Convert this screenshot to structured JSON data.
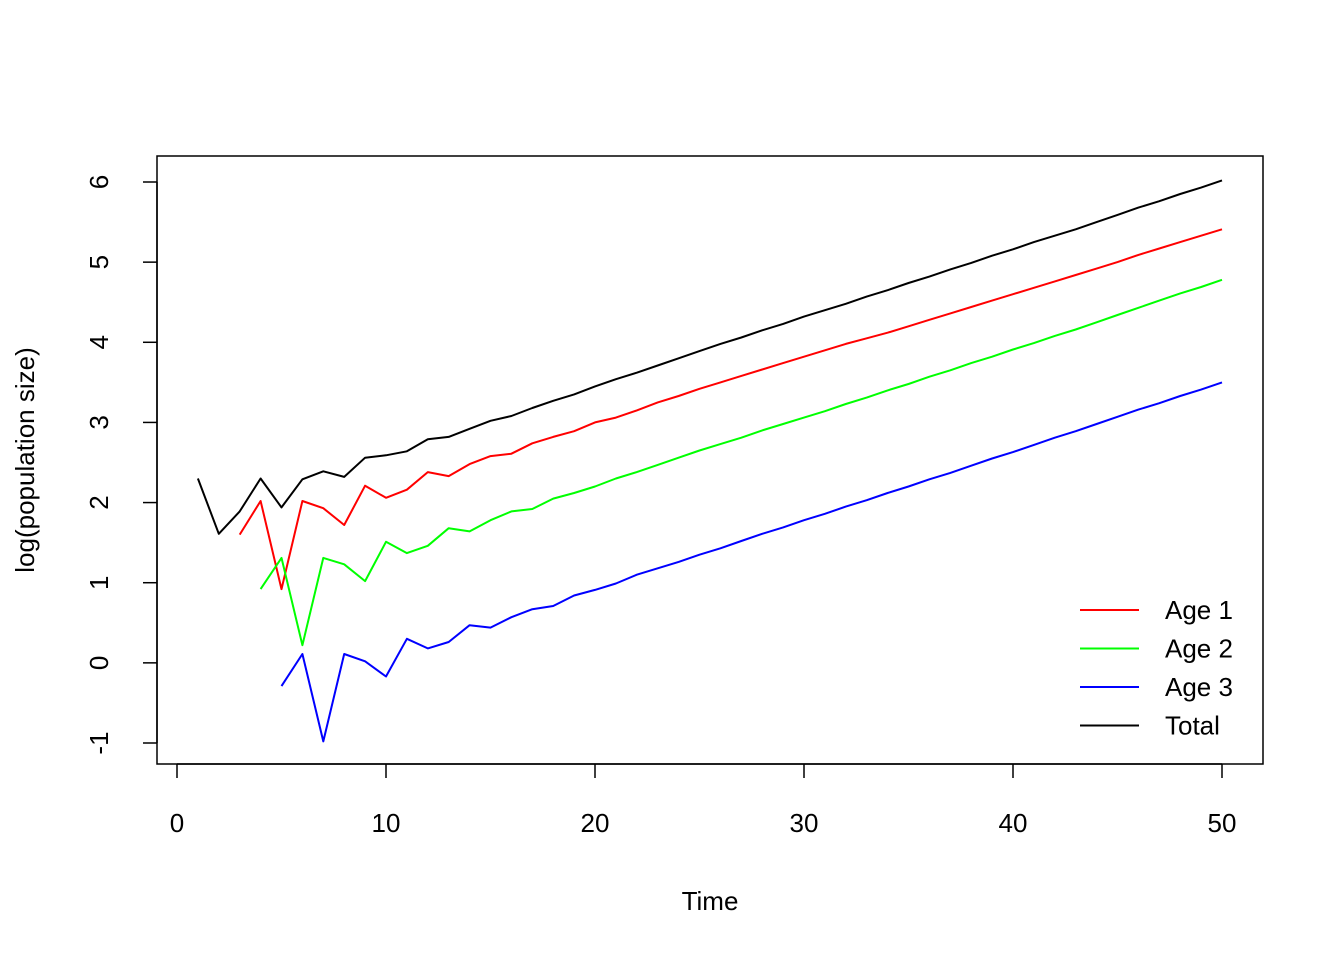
{
  "chart_data": {
    "type": "line",
    "title": "",
    "xlabel": "Time",
    "ylabel": "log(population size)",
    "xlim": [
      0,
      50
    ],
    "ylim": [
      -1,
      6
    ],
    "x_ticks": [
      0,
      10,
      20,
      30,
      40,
      50
    ],
    "y_ticks": [
      -1,
      0,
      1,
      2,
      3,
      4,
      5,
      6
    ],
    "grid": false,
    "legend_position": "bottom-right",
    "series": [
      {
        "name": "Age 1",
        "color": "#FF0000",
        "x": [
          3,
          4,
          5,
          6,
          7,
          8,
          9,
          10,
          11,
          12,
          13,
          14,
          15,
          16,
          17,
          18,
          19,
          20,
          21,
          22,
          23,
          24,
          25,
          26,
          27,
          28,
          29,
          30,
          31,
          32,
          33,
          34,
          35,
          36,
          37,
          38,
          39,
          40,
          41,
          42,
          43,
          44,
          45,
          46,
          47,
          48,
          49,
          50
        ],
        "values": [
          1.6,
          2.02,
          0.92,
          2.02,
          1.93,
          1.72,
          2.21,
          2.06,
          2.16,
          2.38,
          2.33,
          2.48,
          2.58,
          2.61,
          2.74,
          2.82,
          2.89,
          3.0,
          3.06,
          3.15,
          3.25,
          3.33,
          3.42,
          3.5,
          3.58,
          3.66,
          3.74,
          3.82,
          3.9,
          3.98,
          4.05,
          4.12,
          4.2,
          4.28,
          4.36,
          4.44,
          4.52,
          4.6,
          4.68,
          4.76,
          4.84,
          4.92,
          5.0,
          5.09,
          5.17,
          5.25,
          5.33,
          5.41
        ]
      },
      {
        "name": "Age 2",
        "color": "#00FF00",
        "x": [
          4,
          5,
          6,
          7,
          8,
          9,
          10,
          11,
          12,
          13,
          14,
          15,
          16,
          17,
          18,
          19,
          20,
          21,
          22,
          23,
          24,
          25,
          26,
          27,
          28,
          29,
          30,
          31,
          32,
          33,
          34,
          35,
          36,
          37,
          38,
          39,
          40,
          41,
          42,
          43,
          44,
          45,
          46,
          47,
          48,
          49,
          50
        ],
        "values": [
          0.92,
          1.31,
          0.22,
          1.31,
          1.23,
          1.02,
          1.51,
          1.37,
          1.46,
          1.68,
          1.64,
          1.78,
          1.89,
          1.92,
          2.05,
          2.12,
          2.2,
          2.3,
          2.38,
          2.47,
          2.56,
          2.65,
          2.73,
          2.81,
          2.9,
          2.98,
          3.06,
          3.14,
          3.23,
          3.31,
          3.4,
          3.48,
          3.57,
          3.65,
          3.74,
          3.82,
          3.91,
          3.99,
          4.08,
          4.16,
          4.25,
          4.34,
          4.43,
          4.52,
          4.61,
          4.69,
          4.78
        ]
      },
      {
        "name": "Age 3",
        "color": "#0000FF",
        "x": [
          5,
          6,
          7,
          8,
          9,
          10,
          11,
          12,
          13,
          14,
          15,
          16,
          17,
          18,
          19,
          20,
          21,
          22,
          23,
          24,
          25,
          26,
          27,
          28,
          29,
          30,
          31,
          32,
          33,
          34,
          35,
          36,
          37,
          38,
          39,
          40,
          41,
          42,
          43,
          44,
          45,
          46,
          47,
          48,
          49,
          50
        ],
        "values": [
          -0.29,
          0.11,
          -0.98,
          0.11,
          0.02,
          -0.17,
          0.3,
          0.18,
          0.26,
          0.47,
          0.44,
          0.57,
          0.67,
          0.71,
          0.84,
          0.91,
          0.99,
          1.1,
          1.18,
          1.26,
          1.35,
          1.43,
          1.52,
          1.61,
          1.69,
          1.78,
          1.86,
          1.95,
          2.03,
          2.12,
          2.2,
          2.29,
          2.37,
          2.46,
          2.55,
          2.63,
          2.72,
          2.81,
          2.89,
          2.98,
          3.07,
          3.16,
          3.24,
          3.33,
          3.41,
          3.5
        ]
      },
      {
        "name": "Total",
        "color": "#000000",
        "x": [
          1,
          2,
          3,
          4,
          5,
          6,
          7,
          8,
          9,
          10,
          11,
          12,
          13,
          14,
          15,
          16,
          17,
          18,
          19,
          20,
          21,
          22,
          23,
          24,
          25,
          26,
          27,
          28,
          29,
          30,
          31,
          32,
          33,
          34,
          35,
          36,
          37,
          38,
          39,
          40,
          41,
          42,
          43,
          44,
          45,
          46,
          47,
          48,
          49,
          50
        ],
        "values": [
          2.3,
          1.61,
          1.89,
          2.3,
          1.94,
          2.29,
          2.39,
          2.32,
          2.56,
          2.59,
          2.64,
          2.79,
          2.82,
          2.92,
          3.02,
          3.08,
          3.18,
          3.27,
          3.35,
          3.45,
          3.54,
          3.62,
          3.71,
          3.8,
          3.89,
          3.98,
          4.06,
          4.15,
          4.23,
          4.32,
          4.4,
          4.48,
          4.57,
          4.65,
          4.74,
          4.82,
          4.91,
          4.99,
          5.08,
          5.16,
          5.25,
          5.33,
          5.41,
          5.5,
          5.59,
          5.68,
          5.76,
          5.85,
          5.93,
          6.02
        ]
      }
    ]
  }
}
